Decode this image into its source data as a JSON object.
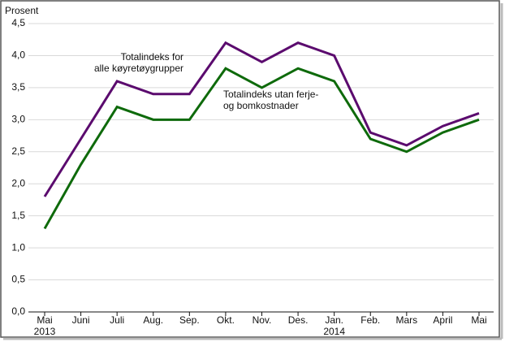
{
  "chart_data": {
    "type": "line",
    "y_label": "Prosent",
    "categories": [
      "Mai",
      "Juni",
      "Juli",
      "Aug.",
      "Sep.",
      "Okt.",
      "Nov.",
      "Des.",
      "Jan.",
      "Feb.",
      "Mars",
      "April",
      "Mai"
    ],
    "x_sublabels": [
      "2013",
      null,
      null,
      null,
      null,
      null,
      null,
      null,
      "2014",
      null,
      null,
      null,
      null
    ],
    "series": [
      {
        "label_lines": [
          "Totalindeks for",
          "alle køyretøygrupper"
        ],
        "color": "#5b0b6e",
        "values": [
          1.8,
          2.7,
          3.6,
          3.4,
          3.4,
          4.2,
          3.9,
          4.2,
          4.0,
          2.8,
          2.6,
          2.9,
          3.1
        ]
      },
      {
        "label_lines": [
          "Totalindeks utan ferje-",
          "og bomkostnader"
        ],
        "color": "#0e6a0b",
        "values": [
          1.3,
          2.3,
          3.2,
          3.0,
          3.0,
          3.8,
          3.5,
          3.8,
          3.6,
          2.7,
          2.5,
          2.8,
          3.0
        ]
      }
    ],
    "ylim": [
      0,
      4.5
    ],
    "yticks": [
      {
        "value": 0,
        "label": "0,0"
      },
      {
        "value": 0.5,
        "label": "0,5"
      },
      {
        "value": 1,
        "label": "1,0"
      },
      {
        "value": 1.5,
        "label": "1,5"
      },
      {
        "value": 2,
        "label": "2,0"
      },
      {
        "value": 2.5,
        "label": "2,5"
      },
      {
        "value": 3,
        "label": "3,0"
      },
      {
        "value": 3.5,
        "label": "3,5"
      },
      {
        "value": 4,
        "label": "4,0"
      },
      {
        "value": 4.5,
        "label": "4,5"
      }
    ],
    "grid": true
  }
}
